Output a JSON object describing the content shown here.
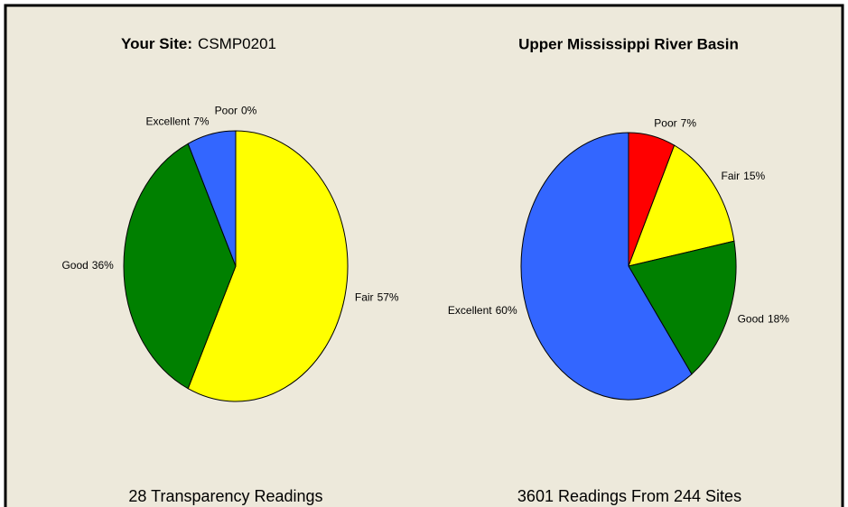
{
  "chart_data": [
    {
      "type": "pie",
      "title_prefix": "Your Site:",
      "title": "CSMP0201",
      "note": "28 Transparency Readings",
      "categories": [
        "Poor",
        "Fair",
        "Good",
        "Excellent"
      ],
      "values": [
        0,
        57,
        36,
        7
      ],
      "value_labels": [
        "0%",
        "57%",
        "36%",
        "7%"
      ],
      "colors": [
        "#ff0000",
        "#ffff00",
        "#008000",
        "#3366ff"
      ]
    },
    {
      "type": "pie",
      "title": "Upper Mississippi River Basin",
      "note": "3601 Readings From 244 Sites",
      "categories": [
        "Poor",
        "Fair",
        "Good",
        "Excellent"
      ],
      "values": [
        7,
        15,
        18,
        60
      ],
      "value_labels": [
        "7%",
        "15%",
        "18%",
        "60%"
      ],
      "colors": [
        "#ff0000",
        "#ffff00",
        "#008000",
        "#3366ff"
      ]
    }
  ]
}
